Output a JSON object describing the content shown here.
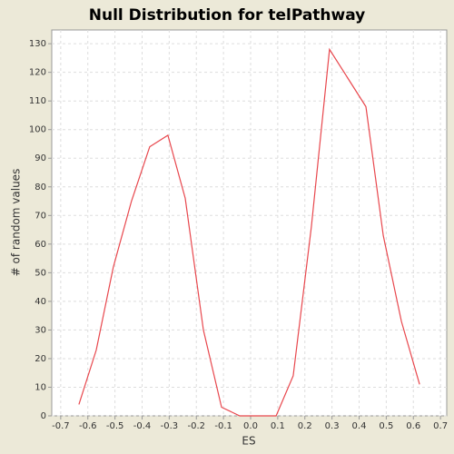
{
  "chart_data": {
    "type": "line",
    "title": "Null Distribution for telPathway",
    "x_label": "ES",
    "y_label": "# of random values",
    "x": [
      -0.633,
      -0.569,
      -0.506,
      -0.439,
      -0.372,
      -0.305,
      -0.241,
      -0.174,
      -0.107,
      -0.04,
      0.027,
      0.094,
      0.157,
      0.224,
      0.291,
      0.358,
      0.425,
      0.489,
      0.556,
      0.623
    ],
    "series": [
      {
        "name": "null distribution",
        "color": "#e8474d",
        "values": [
          4,
          23,
          52,
          75,
          94,
          98,
          76,
          30,
          3,
          0,
          0,
          0,
          14,
          66,
          128,
          118,
          108,
          63,
          33,
          11
        ]
      }
    ],
    "xlim": [
      -0.733,
      0.723
    ],
    "ylim": [
      0,
      134.8
    ],
    "xticks": [
      -0.7,
      -0.6,
      -0.5,
      -0.4,
      -0.3,
      -0.2,
      -0.1,
      {
        "value": 0,
        "label": "0.0"
      },
      0.1,
      0.2,
      0.3,
      0.4,
      0.5,
      0.6,
      0.7
    ],
    "yticks": [
      0,
      10,
      20,
      30,
      40,
      50,
      60,
      70,
      80,
      90,
      100,
      110,
      120,
      130
    ],
    "grid": true
  }
}
